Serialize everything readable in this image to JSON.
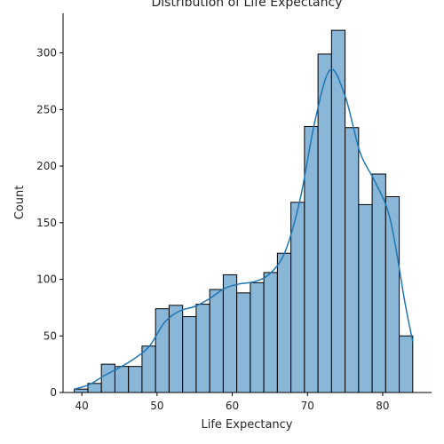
{
  "chart_data": {
    "type": "bar",
    "title": "Distribution of Life Expectancy",
    "xlabel": "Life Expectancy",
    "ylabel": "Count",
    "xlim": [
      37.5,
      86.5
    ],
    "ylim": [
      0,
      335
    ],
    "xticks": [
      40,
      50,
      60,
      70,
      80
    ],
    "yticks": [
      0,
      50,
      100,
      150,
      200,
      250,
      300
    ],
    "bin_edges": [
      39.0,
      40.8,
      42.6,
      44.4,
      46.2,
      48.0,
      49.8,
      51.6,
      53.4,
      55.2,
      57.0,
      58.8,
      60.6,
      62.4,
      64.2,
      66.0,
      67.8,
      69.6,
      71.4,
      73.2,
      75.0,
      76.8,
      78.6,
      80.4,
      82.2,
      84.0
    ],
    "values": [
      3,
      8,
      25,
      23,
      23,
      41,
      74,
      77,
      67,
      78,
      91,
      104,
      88,
      97,
      106,
      123,
      168,
      235,
      299,
      320,
      234,
      166,
      193,
      173,
      50
    ],
    "kde": {
      "x": [
        39,
        41,
        43,
        45,
        47,
        49,
        51,
        53,
        55,
        57,
        59,
        61,
        63,
        65,
        67,
        69,
        71,
        73,
        75,
        77,
        79,
        81,
        83,
        84
      ],
      "y": [
        3,
        7,
        15,
        22,
        30,
        41,
        62,
        72,
        76,
        83,
        92,
        96,
        98,
        105,
        124,
        170,
        240,
        285,
        262,
        212,
        186,
        153,
        78,
        45
      ]
    },
    "bar_color": "#8ab6d8",
    "bar_edge_color": "#000000",
    "kde_color": "#1f77b4",
    "legend": "none",
    "grid": false
  }
}
